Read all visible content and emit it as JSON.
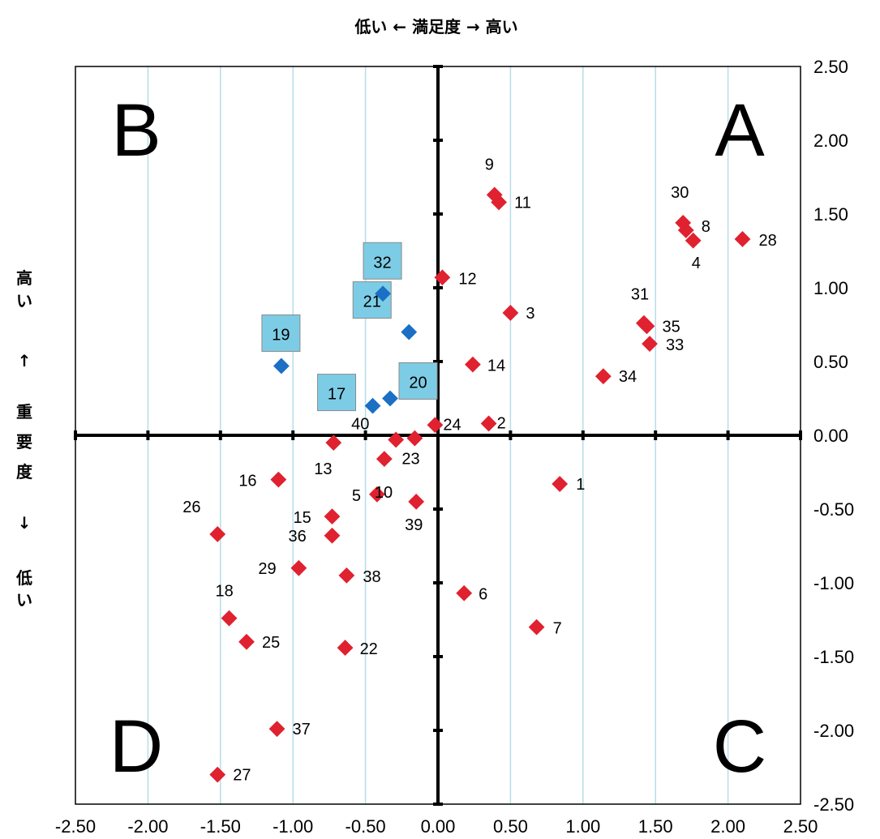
{
  "chart_data": {
    "type": "scatter",
    "title": "低い ← 満足度 → 高い",
    "ylabel_chars": [
      "高",
      "い",
      "↑",
      "重",
      "要",
      "度",
      "↓",
      "低",
      "い"
    ],
    "xlim": [
      -2.5,
      2.5
    ],
    "ylim": [
      -2.5,
      2.5
    ],
    "x_ticks": [
      "-2.50",
      "-2.00",
      "-1.50",
      "-1.00",
      "-0.50",
      "0.00",
      "0.50",
      "1.00",
      "1.50",
      "2.00",
      "2.50"
    ],
    "y_ticks": [
      "2.50",
      "2.00",
      "1.50",
      "1.00",
      "0.50",
      "0.00",
      "-0.50",
      "-1.00",
      "-1.50",
      "-2.00",
      "-2.50"
    ],
    "grid": "vertical",
    "quadrants": {
      "top_right": "A",
      "top_left": "B",
      "bottom_right": "C",
      "bottom_left": "D"
    },
    "colors": {
      "red": "#e0212f",
      "blue": "#1b6fc4",
      "box": "#7dcce6",
      "grid": "#b7dde9"
    },
    "points": [
      {
        "label": "1",
        "x": 0.84,
        "y": -0.33,
        "group": "red"
      },
      {
        "label": "2",
        "x": 0.35,
        "y": 0.08,
        "group": "red"
      },
      {
        "label": "3",
        "x": 0.5,
        "y": 0.83,
        "group": "red"
      },
      {
        "label": "4",
        "x": 1.76,
        "y": 1.32,
        "group": "red"
      },
      {
        "label": "5",
        "x": -0.42,
        "y": -0.4,
        "group": "red"
      },
      {
        "label": "6",
        "x": 0.18,
        "y": -1.07,
        "group": "red"
      },
      {
        "label": "7",
        "x": 0.68,
        "y": -1.3,
        "group": "red"
      },
      {
        "label": "8",
        "x": 1.71,
        "y": 1.39,
        "group": "red"
      },
      {
        "label": "9",
        "x": 0.39,
        "y": 1.63,
        "group": "red"
      },
      {
        "label": "10",
        "x": -0.37,
        "y": -0.16,
        "group": "red"
      },
      {
        "label": "11",
        "x": 0.42,
        "y": 1.58,
        "group": "red"
      },
      {
        "label": "12",
        "x": 0.03,
        "y": 1.07,
        "group": "red"
      },
      {
        "label": "13",
        "x": -0.72,
        "y": -0.05,
        "group": "red"
      },
      {
        "label": "14",
        "x": 0.24,
        "y": 0.48,
        "group": "red"
      },
      {
        "label": "15",
        "x": -0.73,
        "y": -0.55,
        "group": "red"
      },
      {
        "label": "16",
        "x": -1.1,
        "y": -0.3,
        "group": "red"
      },
      {
        "label": "17",
        "x": -0.45,
        "y": 0.2,
        "group": "blue"
      },
      {
        "label": "18",
        "x": -1.44,
        "y": -1.24,
        "group": "red"
      },
      {
        "label": "19",
        "x": -1.08,
        "y": 0.47,
        "group": "blue"
      },
      {
        "label": "20",
        "x": -0.33,
        "y": 0.25,
        "group": "blue"
      },
      {
        "label": "21",
        "x": -0.2,
        "y": 0.7,
        "group": "blue"
      },
      {
        "label": "22",
        "x": -0.64,
        "y": -1.44,
        "group": "red"
      },
      {
        "label": "23",
        "x": -0.16,
        "y": -0.02,
        "group": "red"
      },
      {
        "label": "24",
        "x": -0.02,
        "y": 0.07,
        "group": "red"
      },
      {
        "label": "25",
        "x": -1.32,
        "y": -1.4,
        "group": "red"
      },
      {
        "label": "26",
        "x": -1.52,
        "y": -0.67,
        "group": "red"
      },
      {
        "label": "27",
        "x": -1.52,
        "y": -2.3,
        "group": "red"
      },
      {
        "label": "28",
        "x": 2.1,
        "y": 1.33,
        "group": "red"
      },
      {
        "label": "29",
        "x": -0.96,
        "y": -0.9,
        "group": "red"
      },
      {
        "label": "30",
        "x": 1.69,
        "y": 1.44,
        "group": "red"
      },
      {
        "label": "31",
        "x": 1.42,
        "y": 0.76,
        "group": "red"
      },
      {
        "label": "32",
        "x": -0.38,
        "y": 0.96,
        "group": "blue"
      },
      {
        "label": "33",
        "x": 1.46,
        "y": 0.62,
        "group": "red"
      },
      {
        "label": "34",
        "x": 1.14,
        "y": 0.4,
        "group": "red"
      },
      {
        "label": "35",
        "x": 1.44,
        "y": 0.74,
        "group": "red"
      },
      {
        "label": "36",
        "x": -0.73,
        "y": -0.68,
        "group": "red"
      },
      {
        "label": "37",
        "x": -1.11,
        "y": -1.99,
        "group": "red"
      },
      {
        "label": "38",
        "x": -0.63,
        "y": -0.95,
        "group": "red"
      },
      {
        "label": "39",
        "x": -0.15,
        "y": -0.45,
        "group": "red"
      },
      {
        "label": "40",
        "x": -0.29,
        "y": -0.03,
        "group": "red"
      }
    ]
  }
}
